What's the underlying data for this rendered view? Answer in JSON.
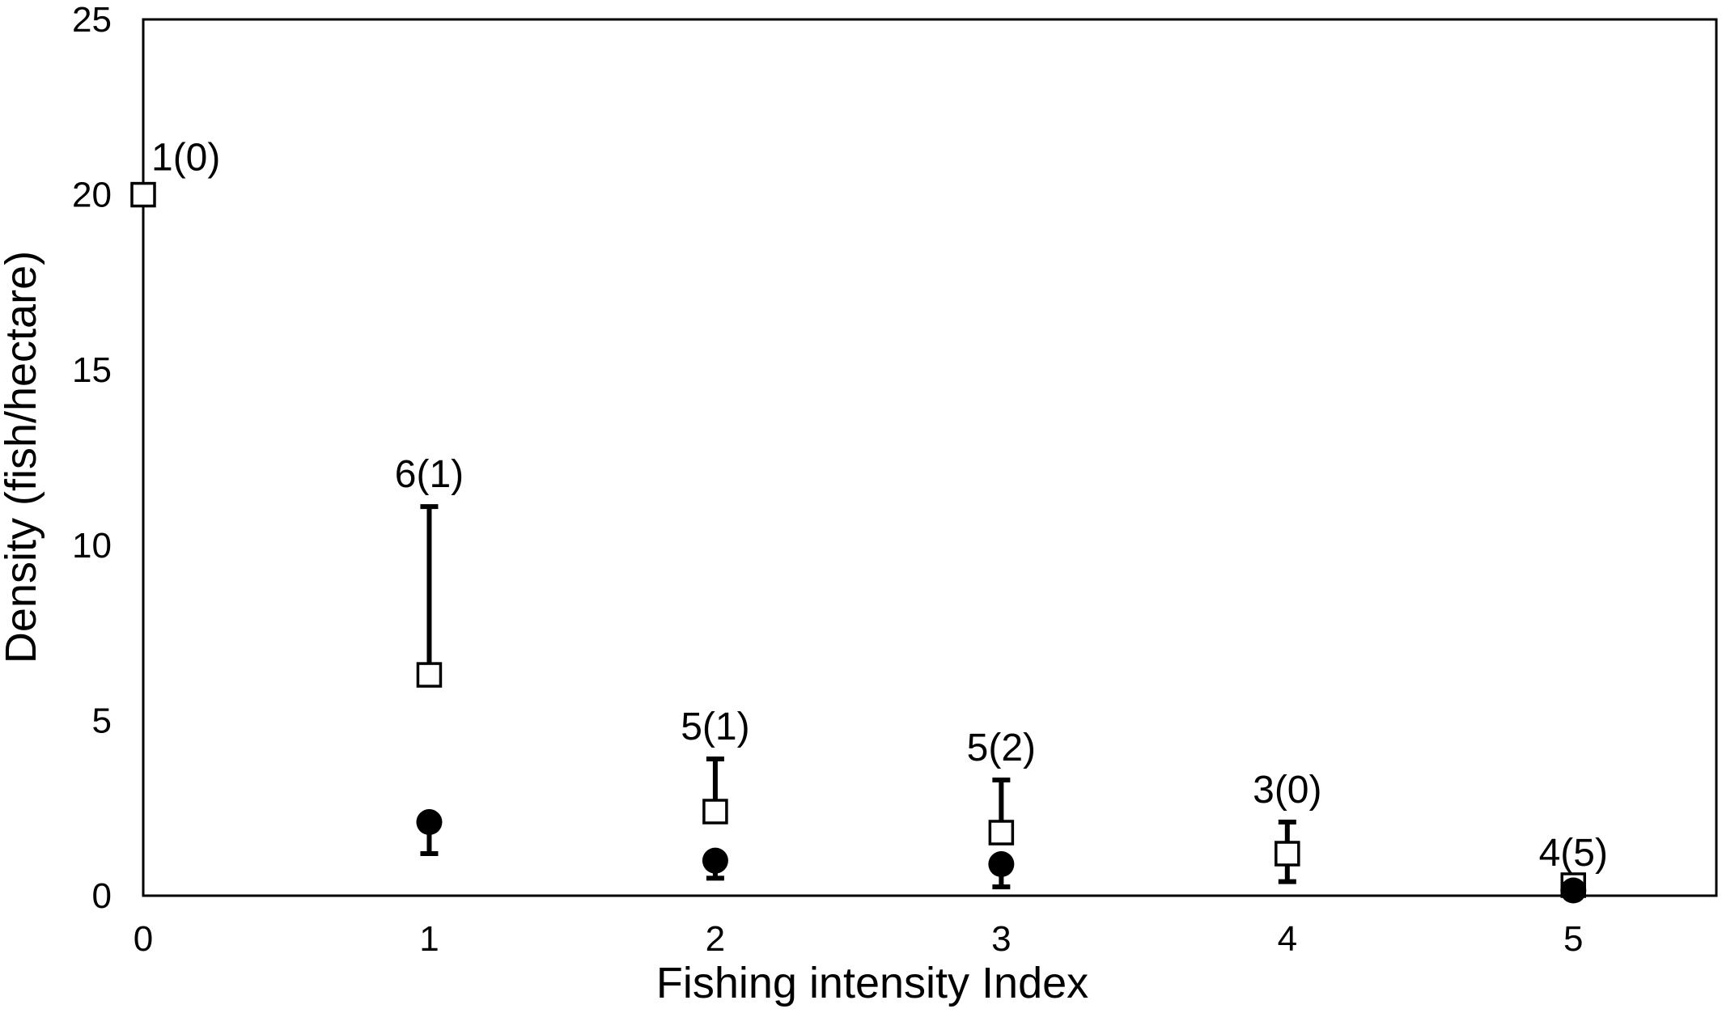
{
  "chart_data": {
    "type": "scatter",
    "xlabel": "Fishing intensity Index",
    "ylabel": "Density (fish/hectare)",
    "xlim": [
      0,
      5.5
    ],
    "ylim": [
      0,
      25
    ],
    "x_ticks": [
      "0",
      "1",
      "2",
      "3",
      "4",
      "5"
    ],
    "y_ticks": [
      "0",
      "5",
      "10",
      "15",
      "20",
      "25"
    ],
    "grid": false,
    "legend": "none",
    "series": [
      {
        "marker": "open-square",
        "points": [
          {
            "x": 0,
            "y": 20.0,
            "err_low": null,
            "err_high": null
          },
          {
            "x": 1,
            "y": 6.3,
            "err_low": null,
            "err_high": 11.1
          },
          {
            "x": 2,
            "y": 2.4,
            "err_low": null,
            "err_high": 3.9
          },
          {
            "x": 3,
            "y": 1.8,
            "err_low": null,
            "err_high": 3.3
          },
          {
            "x": 4,
            "y": 1.2,
            "err_low": 0.4,
            "err_high": 2.1
          },
          {
            "x": 5,
            "y": 0.3,
            "err_low": null,
            "err_high": null
          }
        ]
      },
      {
        "marker": "filled-circle",
        "points": [
          {
            "x": 1,
            "y": 2.1,
            "err_low": 1.2,
            "err_high": null
          },
          {
            "x": 2,
            "y": 1.0,
            "err_low": 0.5,
            "err_high": null
          },
          {
            "x": 3,
            "y": 0.9,
            "err_low": 0.25,
            "err_high": null
          },
          {
            "x": 5,
            "y": 0.15,
            "err_low": null,
            "err_high": null
          }
        ]
      }
    ],
    "annotations": [
      {
        "x": 0,
        "y": 20.0,
        "text": "1(0)"
      },
      {
        "x": 1,
        "y": 11.1,
        "text": "6(1)"
      },
      {
        "x": 2,
        "y": 3.9,
        "text": "5(1)"
      },
      {
        "x": 3,
        "y": 3.3,
        "text": "5(2)"
      },
      {
        "x": 4,
        "y": 2.1,
        "text": "3(0)"
      },
      {
        "x": 5,
        "y": 0.3,
        "text": "4(5)"
      }
    ]
  }
}
